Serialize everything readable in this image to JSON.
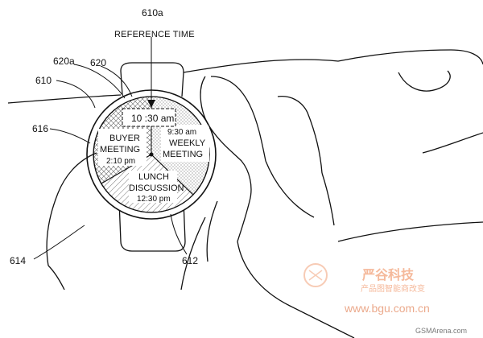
{
  "figure": {
    "reference_label": {
      "num": "610a",
      "text": "REFERENCE TIME"
    },
    "labels": {
      "l620a": "620a",
      "l620": "620",
      "l610": "610",
      "l616": "616",
      "l614": "614",
      "l612": "612"
    },
    "watch": {
      "time": "10 :30 am",
      "segments": {
        "buyer": {
          "line1": "BUYER",
          "line2": "MEETING",
          "time": "2:10 pm"
        },
        "weekly": {
          "time": "9:30 am",
          "line1": "WEEKLY",
          "line2": "MEETING"
        },
        "lunch": {
          "line1": "LUNCH",
          "line2": "DISCUSSION",
          "time": "12:30 pm"
        }
      }
    },
    "watermarks": {
      "brand_cn": "严谷科技",
      "tagline_cn": "产品图智能商改变",
      "site": "www.bgu.com.cn",
      "credit": "GSMArena.com"
    }
  },
  "colors": {
    "line": "#111111",
    "watermark": "#f2a27a"
  }
}
